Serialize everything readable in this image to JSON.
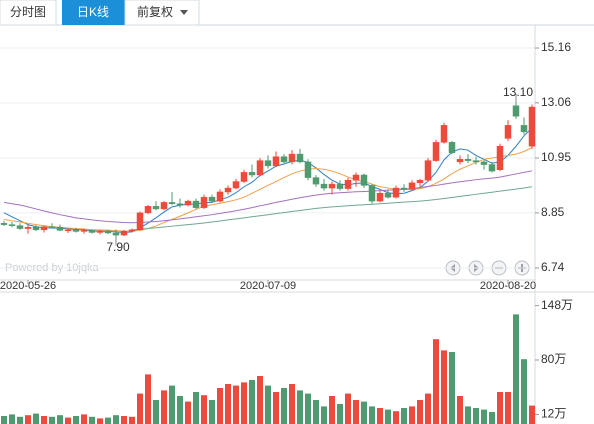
{
  "tabs": [
    "分时图",
    "日K线",
    "前复权"
  ],
  "watermark": "Powered by 10jqka",
  "chart_data": [
    {
      "type": "candlestick",
      "categories": [
        null,
        null,
        null,
        "2020-05-26",
        null,
        null,
        null,
        null,
        null,
        null,
        null,
        null,
        null,
        null,
        null,
        null,
        null,
        null,
        null,
        null,
        null,
        null,
        null,
        null,
        null,
        null,
        null,
        null,
        null,
        null,
        null,
        null,
        null,
        "2020-07-09",
        null,
        null,
        null,
        null,
        null,
        null,
        null,
        null,
        null,
        null,
        null,
        null,
        null,
        null,
        null,
        null,
        null,
        null,
        null,
        null,
        null,
        null,
        null,
        null,
        null,
        null,
        null,
        null,
        null,
        "2020-08-20",
        null,
        null,
        null
      ],
      "open": [
        8.45,
        8.4,
        8.36,
        8.25,
        8.3,
        8.2,
        8.32,
        8.3,
        8.18,
        8.2,
        8.14,
        8.18,
        8.1,
        8.16,
        8.08,
        8.0,
        8.15,
        8.2,
        8.85,
        9.1,
        9.0,
        9.25,
        9.2,
        9.15,
        9.3,
        9.05,
        9.45,
        9.3,
        9.65,
        9.8,
        10.05,
        10.4,
        10.3,
        10.85,
        10.65,
        11.0,
        10.8,
        11.1,
        10.8,
        10.2,
        9.95,
        9.8,
        9.95,
        9.78,
        10.1,
        10.3,
        9.9,
        9.3,
        9.6,
        9.45,
        9.8,
        9.75,
        10.0,
        10.1,
        10.85,
        11.55,
        11.55,
        10.8,
        10.9,
        10.85,
        10.8,
        10.7,
        10.5,
        11.7,
        12.95,
        12.2,
        11.4
      ],
      "high": [
        8.55,
        8.5,
        8.45,
        8.4,
        8.38,
        8.35,
        8.45,
        8.4,
        8.25,
        8.28,
        8.25,
        8.22,
        8.2,
        8.2,
        8.22,
        8.2,
        8.25,
        8.9,
        9.15,
        9.3,
        9.3,
        9.65,
        9.4,
        9.35,
        9.4,
        9.55,
        9.55,
        9.75,
        9.9,
        10.15,
        10.5,
        10.7,
        10.95,
        11.05,
        11.2,
        11.1,
        11.25,
        11.3,
        10.9,
        10.3,
        10.15,
        10.05,
        10.1,
        10.2,
        10.4,
        10.35,
        9.95,
        9.7,
        9.75,
        9.9,
        9.95,
        10.1,
        10.15,
        10.95,
        11.65,
        12.3,
        11.6,
        11.05,
        11.1,
        11.0,
        10.9,
        10.8,
        11.5,
        12.4,
        13.1,
        12.5,
        13.0
      ],
      "low": [
        8.35,
        8.3,
        8.2,
        8.05,
        8.15,
        8.1,
        8.25,
        8.15,
        8.08,
        8.1,
        8.05,
        8.06,
        8.02,
        8.04,
        7.9,
        7.96,
        8.1,
        8.18,
        8.8,
        8.95,
        8.95,
        9.15,
        9.05,
        9.1,
        9.0,
        9.0,
        9.25,
        9.25,
        9.55,
        9.75,
        10.0,
        10.2,
        10.25,
        10.55,
        10.6,
        10.7,
        10.7,
        10.75,
        10.1,
        9.85,
        9.7,
        9.55,
        9.7,
        9.7,
        9.85,
        9.8,
        9.2,
        9.25,
        9.4,
        9.4,
        9.65,
        9.7,
        9.85,
        10.05,
        10.8,
        11.5,
        11.1,
        10.7,
        10.75,
        10.7,
        10.5,
        10.4,
        10.45,
        11.6,
        12.45,
        11.85,
        11.3
      ],
      "close": [
        8.4,
        8.36,
        8.25,
        8.3,
        8.2,
        8.32,
        8.3,
        8.18,
        8.2,
        8.14,
        8.18,
        8.1,
        8.16,
        8.08,
        8.0,
        8.15,
        8.2,
        8.85,
        9.1,
        9.0,
        9.25,
        9.2,
        9.15,
        9.3,
        9.05,
        9.45,
        9.3,
        9.65,
        9.8,
        10.05,
        10.4,
        10.3,
        10.85,
        10.65,
        11.0,
        10.8,
        11.1,
        10.8,
        10.2,
        9.95,
        9.8,
        9.95,
        9.78,
        10.1,
        10.3,
        9.9,
        9.3,
        9.6,
        9.45,
        9.8,
        9.75,
        10.0,
        10.1,
        10.85,
        11.55,
        12.2,
        11.15,
        10.9,
        10.85,
        10.8,
        10.7,
        10.45,
        11.4,
        12.2,
        12.55,
        11.95,
        12.9
      ],
      "colors": {
        "up": "#ec4a3c",
        "down": "#4f9a6f"
      },
      "lines": [
        {
          "color": "#2f7fc4",
          "values": [
            8.85,
            8.7,
            8.55,
            8.4,
            8.32,
            8.28,
            8.27,
            8.26,
            8.24,
            8.22,
            8.2,
            8.16,
            8.15,
            8.14,
            8.12,
            8.1,
            8.12,
            8.28,
            8.46,
            8.66,
            8.88,
            9.08,
            9.14,
            9.18,
            9.19,
            9.23,
            9.25,
            9.35,
            9.45,
            9.62,
            9.85,
            10.02,
            10.28,
            10.45,
            10.64,
            10.72,
            10.82,
            10.87,
            10.78,
            10.57,
            10.32,
            10.1,
            9.95,
            9.92,
            9.98,
            10.0,
            9.86,
            9.75,
            9.62,
            9.58,
            9.6,
            9.7,
            9.82,
            10.06,
            10.4,
            10.88,
            11.18,
            11.3,
            11.25,
            11.05,
            10.9,
            10.75,
            10.8,
            11.05,
            11.4,
            11.8,
            12.1
          ]
        },
        {
          "color": "#f0a04a",
          "values": [
            8.6,
            8.55,
            8.5,
            8.45,
            8.4,
            8.36,
            8.32,
            8.3,
            8.27,
            8.25,
            8.23,
            8.21,
            8.2,
            8.19,
            8.17,
            8.15,
            8.15,
            8.18,
            8.25,
            8.35,
            8.48,
            8.6,
            8.72,
            8.85,
            8.98,
            9.1,
            9.16,
            9.22,
            9.28,
            9.35,
            9.45,
            9.6,
            9.75,
            9.9,
            10.05,
            10.2,
            10.35,
            10.45,
            10.52,
            10.55,
            10.52,
            10.45,
            10.35,
            10.22,
            10.12,
            10.05,
            9.95,
            9.85,
            9.8,
            9.75,
            9.75,
            9.75,
            9.78,
            9.85,
            9.98,
            10.15,
            10.35,
            10.52,
            10.65,
            10.78,
            10.9,
            10.95,
            11.0,
            11.05,
            11.1,
            11.2,
            11.35
          ]
        },
        {
          "color": "#a471c0",
          "values": [
            9.25,
            9.2,
            9.15,
            9.08,
            9.0,
            8.92,
            8.85,
            8.78,
            8.72,
            8.66,
            8.62,
            8.58,
            8.55,
            8.52,
            8.5,
            8.48,
            8.47,
            8.48,
            8.5,
            8.52,
            8.55,
            8.58,
            8.62,
            8.66,
            8.7,
            8.74,
            8.78,
            8.83,
            8.88,
            8.93,
            8.99,
            9.05,
            9.12,
            9.18,
            9.25,
            9.31,
            9.37,
            9.43,
            9.48,
            9.53,
            9.57,
            9.6,
            9.62,
            9.64,
            9.66,
            9.67,
            9.68,
            9.7,
            9.72,
            9.73,
            9.75,
            9.78,
            9.82,
            9.86,
            9.9,
            9.95,
            10.0,
            10.04,
            10.08,
            10.12,
            10.15,
            10.18,
            10.22,
            10.28,
            10.34,
            10.4,
            10.46
          ]
        },
        {
          "color": "#6fa890",
          "values": [
            null,
            null,
            null,
            null,
            null,
            null,
            null,
            null,
            null,
            null,
            null,
            null,
            null,
            null,
            null,
            null,
            8.2,
            8.22,
            8.25,
            8.28,
            8.31,
            8.34,
            8.37,
            8.4,
            8.43,
            8.46,
            8.5,
            8.54,
            8.58,
            8.62,
            8.66,
            8.7,
            8.74,
            8.78,
            8.82,
            8.86,
            8.9,
            8.94,
            8.98,
            9.02,
            9.05,
            9.08,
            9.1,
            9.12,
            9.14,
            9.16,
            9.18,
            9.2,
            9.22,
            9.24,
            9.26,
            9.28,
            9.3,
            9.33,
            9.36,
            9.4,
            9.44,
            9.48,
            9.52,
            9.56,
            9.6,
            9.64,
            9.68,
            9.72,
            9.76,
            9.8,
            9.85
          ]
        }
      ],
      "annotations": [
        {
          "value": 13.1,
          "label": "13.10"
        },
        {
          "value": 7.9,
          "label": "7.90"
        }
      ],
      "ylim": [
        6.28,
        15.85
      ],
      "yticks": [
        6.74,
        8.85,
        10.95,
        13.06,
        15.16
      ],
      "grid": true
    },
    {
      "type": "bar",
      "values": [
        10,
        12,
        9,
        11,
        13,
        10,
        9,
        11,
        8,
        10,
        12,
        9,
        7,
        8,
        11,
        10,
        9,
        38,
        62,
        30,
        42,
        48,
        35,
        28,
        40,
        36,
        30,
        45,
        50,
        48,
        52,
        55,
        60,
        48,
        40,
        45,
        50,
        42,
        38,
        30,
        22,
        35,
        25,
        38,
        30,
        28,
        22,
        20,
        18,
        16,
        20,
        22,
        30,
        38,
        106,
        92,
        90,
        35,
        22,
        20,
        18,
        15,
        40,
        40,
        137,
        81,
        23
      ],
      "ylim": [
        0,
        165
      ],
      "yticks": [
        {
          "value": 12,
          "label": "12万"
        },
        {
          "value": 80,
          "label": "80万"
        },
        {
          "value": 148,
          "label": "148万"
        }
      ]
    }
  ]
}
